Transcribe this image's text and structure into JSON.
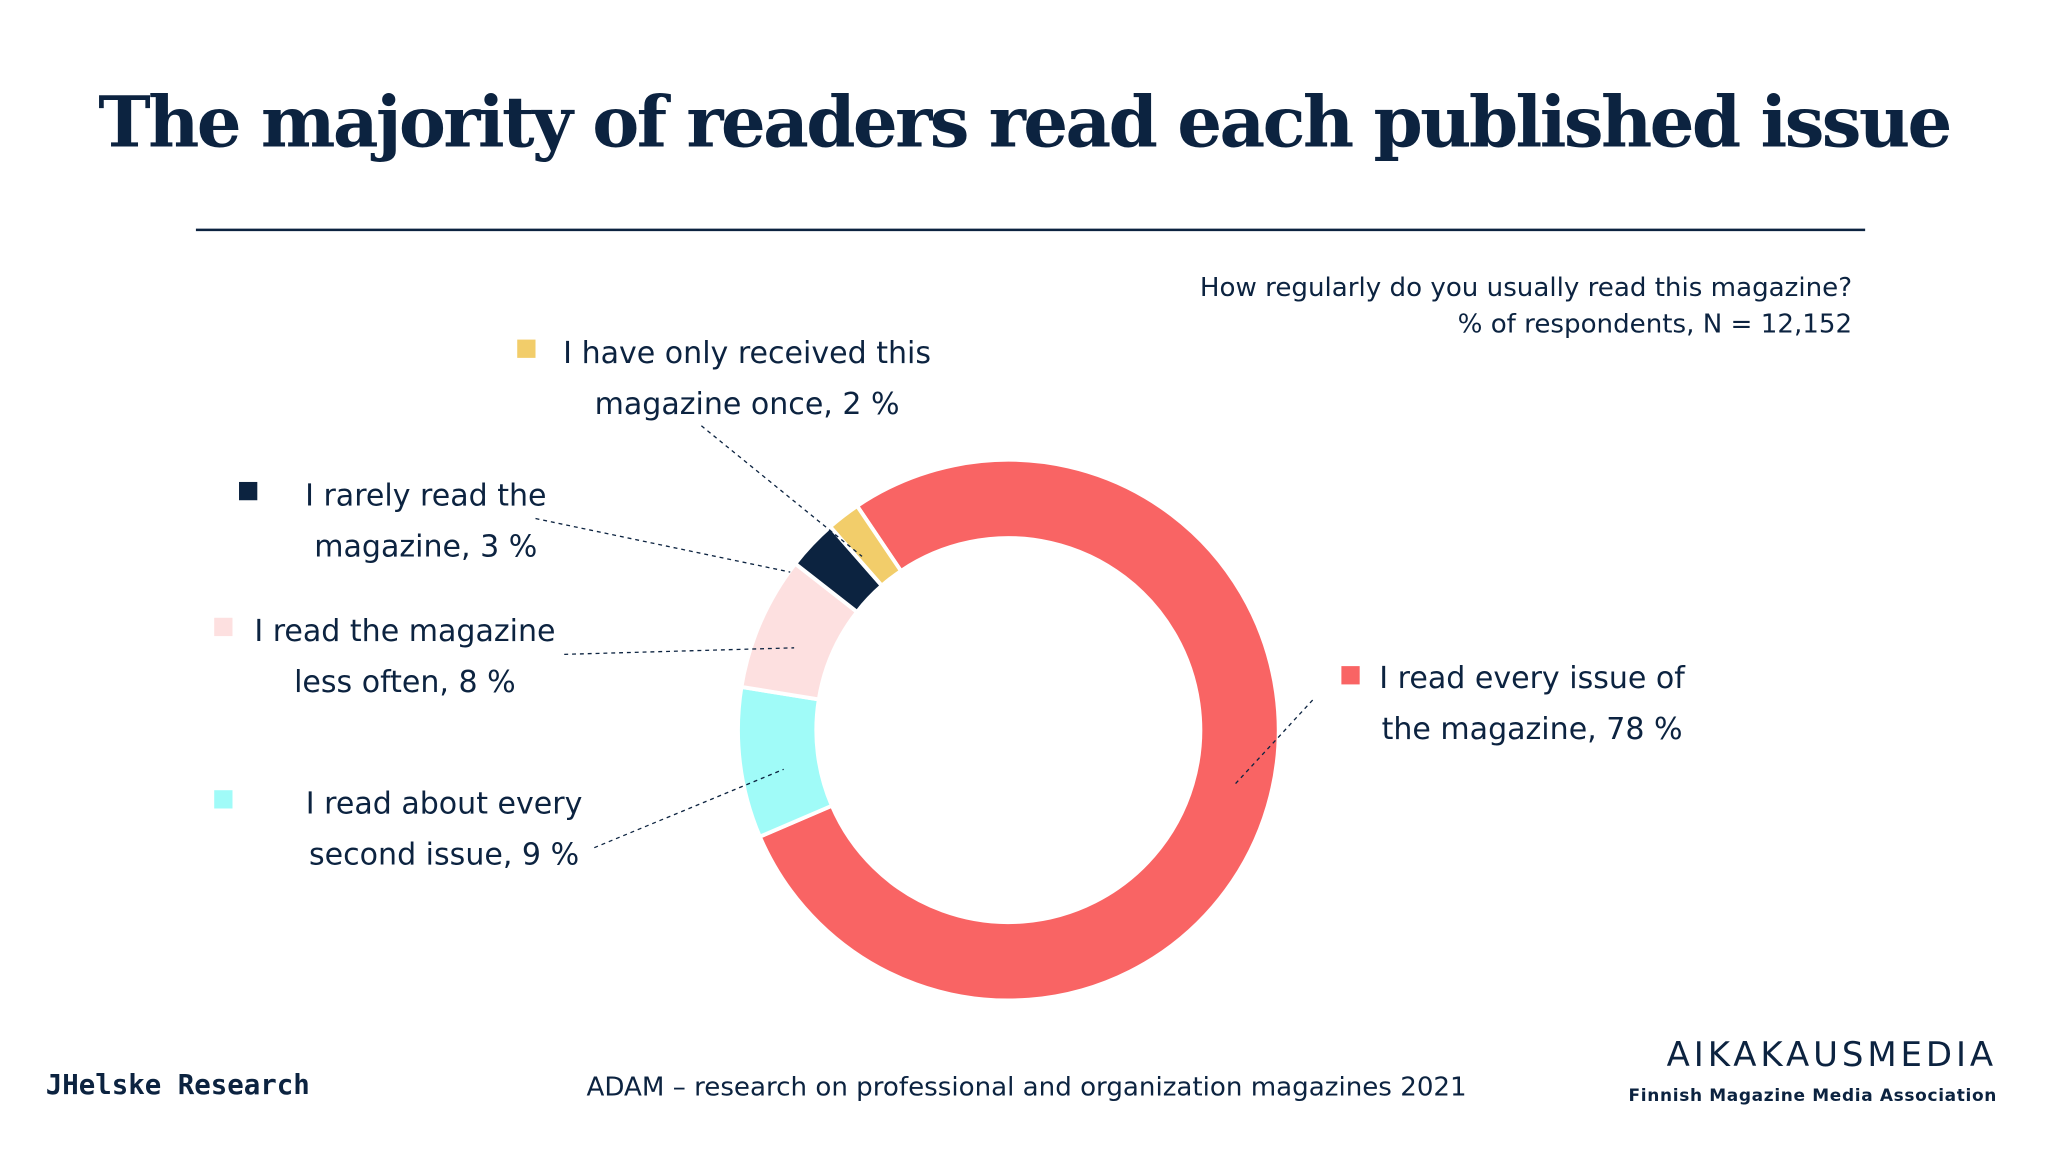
{
  "chart_data": {
    "type": "donut",
    "title": "The majority of readers read each published issue",
    "question": "How regularly do you usually read this magazine?",
    "note": "% of respondents,  N = 12,152",
    "categories": [
      "I read every issue of\nthe magazine, 78 %",
      "I read about every\nsecond issue, 9 %",
      "I read the magazine\nless often, 8 %",
      "I rarely read the\nmagazine, 3 %",
      "I have only received this\nmagazine once, 2 %"
    ],
    "values": [
      78,
      9,
      8,
      3,
      2
    ],
    "colors": [
      "#f96464",
      "#a0fbf8",
      "#fde0e0",
      "#0c2340",
      "#f2cd6a"
    ],
    "source": "ADAM – research on professional and organization magazines 2021",
    "logo_left": "JHelske Research",
    "logo_right": "AIKAKAUSMEDIA",
    "logo_right_sub": "Finnish Magazine Media Association"
  }
}
